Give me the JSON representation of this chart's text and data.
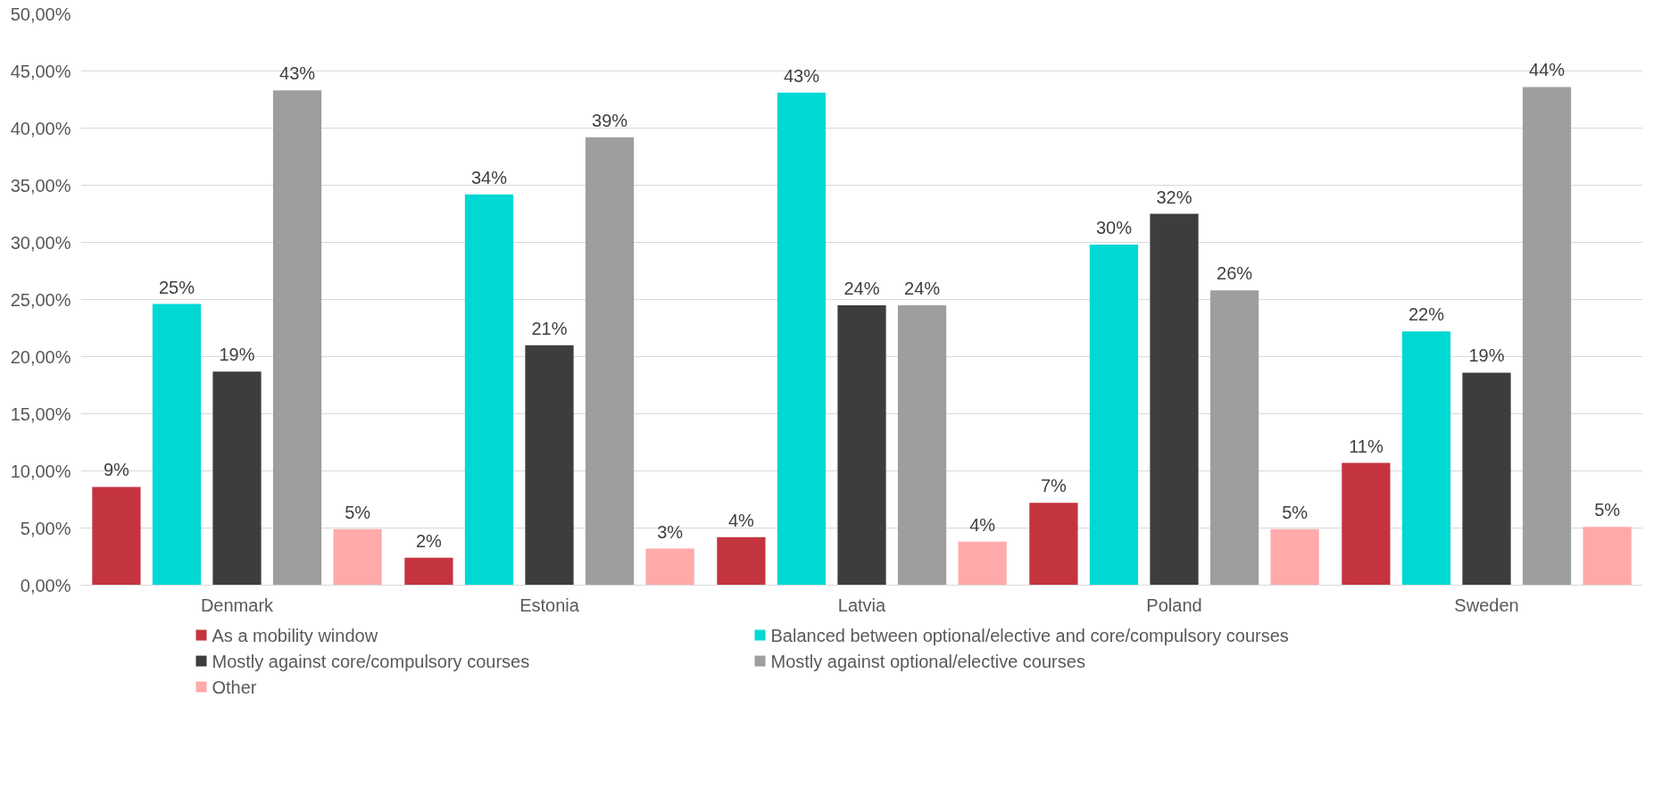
{
  "chart_data": {
    "type": "bar",
    "categories": [
      "Denmark",
      "Estonia",
      "Latvia",
      "Poland",
      "Sweden"
    ],
    "series": [
      {
        "name": "As a mobility window",
        "color": "#c4343f",
        "values": [
          8.6,
          2.4,
          4.2,
          7.2,
          10.7
        ],
        "value_labels": [
          "9%",
          "2%",
          "4%",
          "7%",
          "11%"
        ]
      },
      {
        "name": "Balanced between optional/elective and core/compulsory courses",
        "color": "#00d8d4",
        "values": [
          24.6,
          34.2,
          43.1,
          29.8,
          22.2
        ],
        "value_labels": [
          "25%",
          "34%",
          "43%",
          "30%",
          "22%"
        ]
      },
      {
        "name": "Mostly against core/compulsory courses",
        "color": "#3d3d3d",
        "values": [
          18.7,
          21.0,
          24.5,
          32.5,
          18.6
        ],
        "value_labels": [
          "19%",
          "21%",
          "24%",
          "32%",
          "19%"
        ]
      },
      {
        "name": "Mostly against optional/elective courses",
        "color": "#9e9e9e",
        "values": [
          43.3,
          39.2,
          24.5,
          25.8,
          43.6
        ],
        "value_labels": [
          "43%",
          "39%",
          "24%",
          "26%",
          "44%"
        ]
      },
      {
        "name": "Other",
        "color": "#ffa9aa",
        "values": [
          4.9,
          3.2,
          3.8,
          4.9,
          5.1
        ],
        "value_labels": [
          "5%",
          "3%",
          "4%",
          "5%",
          "5%"
        ]
      }
    ],
    "ylim": [
      0,
      50
    ],
    "yticks": [
      {
        "value": 0,
        "label": "0,00%"
      },
      {
        "value": 5,
        "label": "5,00%"
      },
      {
        "value": 10,
        "label": "10,00%"
      },
      {
        "value": 15,
        "label": "15,00%"
      },
      {
        "value": 20,
        "label": "20,00%"
      },
      {
        "value": 25,
        "label": "25,00%"
      },
      {
        "value": 30,
        "label": "30,00%"
      },
      {
        "value": 35,
        "label": "35,00%"
      },
      {
        "value": 40,
        "label": "40,00%"
      },
      {
        "value": 45,
        "label": "45,00%"
      },
      {
        "value": 50,
        "label": "50,00%"
      }
    ],
    "grid": "y",
    "legend": "bottom"
  }
}
